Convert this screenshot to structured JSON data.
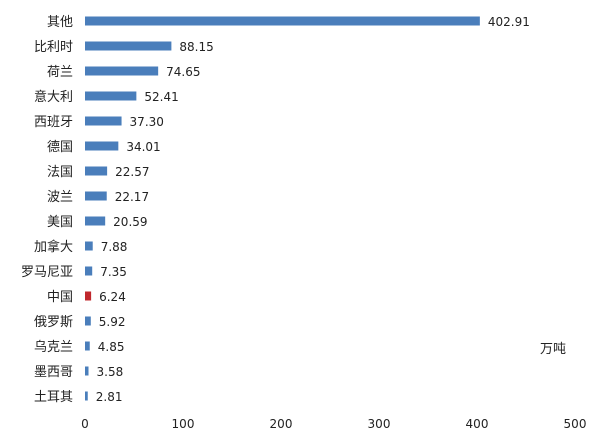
{
  "chart_data": {
    "type": "bar",
    "orientation": "horizontal",
    "categories": [
      "其他",
      "比利时",
      "荷兰",
      "意大利",
      "西班牙",
      "德国",
      "法国",
      "波兰",
      "美国",
      "加拿大",
      "罗马尼亚",
      "中国",
      "俄罗斯",
      "乌克兰",
      "墨西哥",
      "土耳其"
    ],
    "values": [
      402.91,
      88.15,
      74.65,
      52.41,
      37.3,
      34.01,
      22.57,
      22.17,
      20.59,
      7.88,
      7.35,
      6.24,
      5.92,
      4.85,
      3.58,
      2.81
    ],
    "value_labels": [
      "402.91",
      "88.15",
      "74.65",
      "52.41",
      "37.30",
      "34.01",
      "22.57",
      "22.17",
      "20.59",
      "7.88",
      "7.35",
      "6.24",
      "5.92",
      "4.85",
      "3.58",
      "2.81"
    ],
    "xlim": [
      0,
      500
    ],
    "x_ticks": [
      "0",
      "100",
      "200",
      "300",
      "400",
      "500"
    ],
    "unit": "万吨",
    "grid": false,
    "colors": {
      "default": "#4a7ebb",
      "highlight": "#c0282d"
    },
    "highlight_category": "中国"
  }
}
